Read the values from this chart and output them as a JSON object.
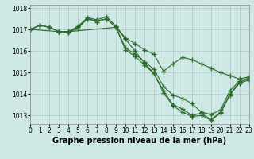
{
  "series": [
    {
      "name": "line1_upper",
      "x": [
        0,
        1,
        2,
        3,
        4,
        5,
        6,
        7,
        8,
        9,
        10,
        11,
        12,
        13,
        14,
        15,
        16,
        17,
        18,
        19,
        20,
        21,
        22,
        23
      ],
      "y": [
        1017.0,
        1017.2,
        1017.1,
        1016.9,
        1016.9,
        1017.15,
        1017.55,
        1017.45,
        1017.6,
        1017.15,
        1016.6,
        1016.35,
        1016.05,
        1015.85,
        1015.05,
        1015.4,
        1015.7,
        1015.6,
        1015.4,
        1015.2,
        1015.0,
        1014.85,
        1014.7,
        1014.8
      ]
    },
    {
      "name": "line2_mid",
      "x": [
        0,
        1,
        2,
        3,
        4,
        5,
        6,
        7,
        8,
        9,
        10,
        11,
        12,
        13,
        14,
        15,
        16,
        17,
        18,
        19,
        20,
        21,
        22,
        23
      ],
      "y": [
        1017.0,
        1017.2,
        1017.1,
        1016.9,
        1016.85,
        1017.05,
        1017.5,
        1017.35,
        1017.5,
        1017.1,
        1016.15,
        1015.85,
        1015.5,
        1015.15,
        1014.35,
        1013.95,
        1013.8,
        1013.55,
        1013.15,
        1013.05,
        1013.25,
        1014.15,
        1014.6,
        1014.75
      ]
    },
    {
      "name": "line3_low",
      "x": [
        0,
        1,
        2,
        3,
        4,
        5,
        6,
        7,
        8,
        9,
        10,
        11,
        12,
        13,
        14,
        15,
        16,
        17,
        18,
        19,
        20,
        21,
        22,
        23
      ],
      "y": [
        1017.0,
        1017.2,
        1017.1,
        1016.9,
        1016.9,
        1017.1,
        1017.5,
        1017.4,
        1017.5,
        1017.1,
        1016.05,
        1015.75,
        1015.35,
        1014.95,
        1014.15,
        1013.5,
        1013.3,
        1013.0,
        1013.1,
        1012.8,
        1013.15,
        1014.0,
        1014.55,
        1014.7
      ]
    },
    {
      "name": "line4_lowest",
      "x": [
        0,
        3,
        4,
        9,
        10,
        11,
        12,
        13,
        14,
        15,
        16,
        17,
        18,
        19,
        20,
        21,
        22,
        23
      ],
      "y": [
        1017.0,
        1016.9,
        1016.9,
        1017.1,
        1016.55,
        1016.0,
        1015.45,
        1014.95,
        1014.05,
        1013.45,
        1013.15,
        1012.95,
        1013.0,
        1012.78,
        1013.1,
        1013.95,
        1014.5,
        1014.65
      ]
    }
  ],
  "line_color": "#2d6a2d",
  "marker": "+",
  "markersize": 4,
  "linewidth": 0.8,
  "markeredgewidth": 1.0,
  "xlim": [
    0,
    23
  ],
  "ylim": [
    1012.6,
    1018.15
  ],
  "yticks": [
    1013,
    1014,
    1015,
    1016,
    1017,
    1018
  ],
  "xticks": [
    0,
    1,
    2,
    3,
    4,
    5,
    6,
    7,
    8,
    9,
    10,
    11,
    12,
    13,
    14,
    15,
    16,
    17,
    18,
    19,
    20,
    21,
    22,
    23
  ],
  "xlabel": "Graphe pression niveau de la mer (hPa)",
  "bg_color": "#cde8e5",
  "grid_color": "#b0c8c5",
  "tick_fontsize": 5.5,
  "xlabel_fontsize": 7.0
}
